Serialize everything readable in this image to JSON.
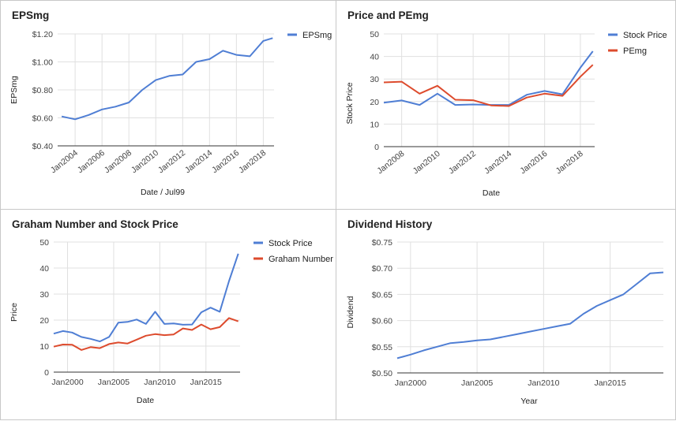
{
  "chart_data": [
    {
      "type": "line",
      "title": "EPSmg",
      "xlabel": "Date / Jul99",
      "ylabel": "EPSmg",
      "x_ticks": [
        "Jan2004",
        "Jan2006",
        "Jan2008",
        "Jan2010",
        "Jan2012",
        "Jan2014",
        "Jan2016",
        "Jan2018"
      ],
      "x_tick_values": [
        2004,
        2006,
        2008,
        2010,
        2012,
        2014,
        2016,
        2018
      ],
      "xlim": [
        2002.7,
        2018.8
      ],
      "y_ticks": [
        "$0.40",
        "$0.60",
        "$0.80",
        "$1.00",
        "$1.20"
      ],
      "y_tick_values": [
        0.4,
        0.6,
        0.8,
        1.0,
        1.2
      ],
      "ylim": [
        0.4,
        1.2
      ],
      "rotate_x": true,
      "grid": true,
      "legend": "right",
      "series": [
        {
          "name": "EPSmg",
          "color": "#4f7ed4",
          "x": [
            2003,
            2004,
            2005,
            2006,
            2007,
            2008,
            2009,
            2010,
            2011,
            2012,
            2013,
            2014,
            2015,
            2016,
            2017,
            2018,
            2018.7
          ],
          "y": [
            0.61,
            0.59,
            0.62,
            0.66,
            0.68,
            0.71,
            0.8,
            0.87,
            0.9,
            0.91,
            1.0,
            1.02,
            1.08,
            1.05,
            1.04,
            1.15,
            1.17
          ]
        }
      ]
    },
    {
      "type": "line",
      "title": "Price and PEmg",
      "xlabel": "Date",
      "ylabel": "Stock Price",
      "x_ticks": [
        "Jan2008",
        "Jan2010",
        "Jan2012",
        "Jan2014",
        "Jan2016",
        "Jan2018"
      ],
      "x_tick_values": [
        2008,
        2010,
        2012,
        2014,
        2016,
        2018
      ],
      "xlim": [
        2007,
        2018.8
      ],
      "y_ticks": [
        "0",
        "10",
        "20",
        "30",
        "40",
        "50"
      ],
      "y_tick_values": [
        0,
        10,
        20,
        30,
        40,
        50
      ],
      "ylim": [
        0,
        50
      ],
      "rotate_x": true,
      "grid": true,
      "legend": "right",
      "series": [
        {
          "name": "Stock Price",
          "color": "#4f7ed4",
          "x": [
            2007,
            2008,
            2009,
            2010,
            2011,
            2012,
            2013,
            2014,
            2015,
            2016,
            2017,
            2018,
            2018.7
          ],
          "y": [
            19.5,
            20.5,
            18.5,
            23.5,
            18.5,
            18.7,
            18.5,
            18.5,
            23.0,
            24.7,
            23.2,
            35,
            42.3
          ]
        },
        {
          "name": "PEmg",
          "color": "#dd4b2d",
          "x": [
            2007,
            2008,
            2009,
            2010,
            2011,
            2012,
            2013,
            2014,
            2015,
            2016,
            2017,
            2018,
            2018.7
          ],
          "y": [
            28.5,
            28.8,
            23.5,
            27.0,
            20.8,
            20.6,
            18.3,
            18.0,
            21.8,
            23.5,
            22.5,
            31,
            36.3
          ]
        }
      ]
    },
    {
      "type": "line",
      "title": "Graham Number and Stock Price",
      "xlabel": "Date",
      "ylabel": "Price",
      "x_ticks": [
        "Jan2000",
        "Jan2005",
        "Jan2010",
        "Jan2015"
      ],
      "x_tick_values": [
        2000,
        2005,
        2010,
        2015
      ],
      "xlim": [
        1998.5,
        2018.7
      ],
      "y_ticks": [
        "0",
        "10",
        "20",
        "30",
        "40",
        "50"
      ],
      "y_tick_values": [
        0,
        10,
        20,
        30,
        40,
        50
      ],
      "ylim": [
        0,
        50
      ],
      "rotate_x": false,
      "grid": true,
      "legend": "right",
      "series": [
        {
          "name": "Stock Price",
          "color": "#4f7ed4",
          "x": [
            1998.5,
            1999.5,
            2000.5,
            2001.5,
            2002.5,
            2003.5,
            2004.5,
            2005.5,
            2006.5,
            2007.5,
            2008.5,
            2009.5,
            2010.5,
            2011.5,
            2012.5,
            2013.5,
            2014.5,
            2015.5,
            2016.5,
            2017.5,
            2018.5
          ],
          "y": [
            14.8,
            15.8,
            15.2,
            13.5,
            12.8,
            11.8,
            13.5,
            19.0,
            19.3,
            20.2,
            18.5,
            23.2,
            18.5,
            18.7,
            18.2,
            18.3,
            23.0,
            24.8,
            23.2,
            35,
            45.5
          ]
        },
        {
          "name": "Graham Number",
          "color": "#dd4b2d",
          "x": [
            1998.5,
            1999.5,
            2000.5,
            2001.5,
            2002.5,
            2003.5,
            2004.5,
            2005.5,
            2006.5,
            2007.5,
            2008.5,
            2009.5,
            2010.5,
            2011.5,
            2012.5,
            2013.5,
            2014.5,
            2015.5,
            2016.5,
            2017.5,
            2018.5
          ],
          "y": [
            9.8,
            10.6,
            10.5,
            8.5,
            9.6,
            9.2,
            10.8,
            11.4,
            11.0,
            12.5,
            14.0,
            14.6,
            14.2,
            14.5,
            16.8,
            16.2,
            18.3,
            16.5,
            17.3,
            20.8,
            19.5
          ]
        }
      ]
    },
    {
      "type": "line",
      "title": "Dividend History",
      "xlabel": "Year",
      "ylabel": "Dividend",
      "x_ticks": [
        "Jan2000",
        "Jan2005",
        "Jan2010",
        "Jan2015"
      ],
      "x_tick_values": [
        2000,
        2005,
        2010,
        2015
      ],
      "xlim": [
        1999,
        2019
      ],
      "y_ticks": [
        "$0.50",
        "$0.55",
        "$0.60",
        "$0.65",
        "$0.70",
        "$0.75"
      ],
      "y_tick_values": [
        0.5,
        0.55,
        0.6,
        0.65,
        0.7,
        0.75
      ],
      "ylim": [
        0.5,
        0.75
      ],
      "rotate_x": false,
      "grid": true,
      "legend": "none",
      "series": [
        {
          "name": "",
          "color": "#4f7ed4",
          "x": [
            1999,
            2000,
            2001,
            2002,
            2003,
            2004,
            2005,
            2006,
            2007,
            2008,
            2009,
            2010,
            2011,
            2012,
            2013,
            2014,
            2015,
            2016,
            2017,
            2018,
            2019
          ],
          "y": [
            0.528,
            0.535,
            0.543,
            0.55,
            0.557,
            0.559,
            0.562,
            0.564,
            0.569,
            0.574,
            0.579,
            0.584,
            0.589,
            0.594,
            0.613,
            0.628,
            0.639,
            0.65,
            0.67,
            0.69,
            0.692
          ]
        }
      ]
    }
  ]
}
